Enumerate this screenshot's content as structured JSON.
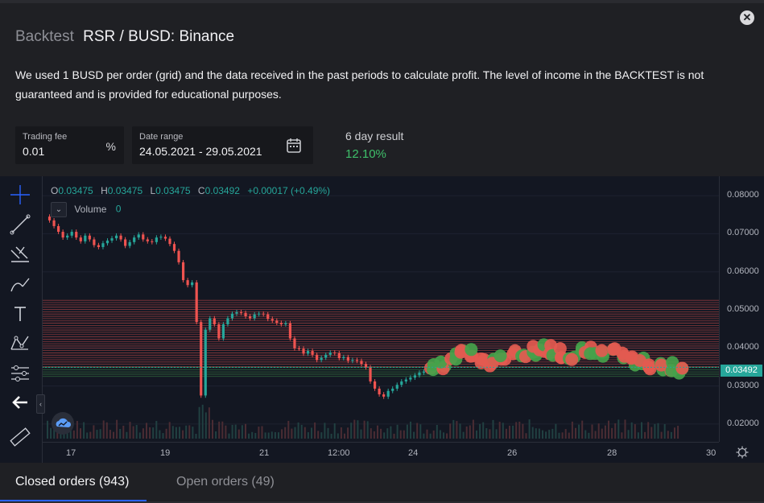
{
  "modal": {
    "title_prefix": "Backtest",
    "title": "RSR / BUSD: Binance",
    "description": "We used 1 BUSD per order (grid) and the data received in the past periods to calculate profit. The level of income in the BACKTEST is not guaranteed and is provided for educational purposes.",
    "close_icon": "close-icon"
  },
  "fields": {
    "trading_fee": {
      "label": "Trading fee",
      "value": "0.01",
      "unit": "%"
    },
    "date_range": {
      "label": "Date range",
      "value": "24.05.2021 - 29.05.2021",
      "icon": "calendar-icon"
    }
  },
  "result": {
    "label": "6 day result",
    "value": "12.10%",
    "color": "#3fbf6a"
  },
  "chart": {
    "ohlc": {
      "o_label": "O",
      "o": "0.03475",
      "h_label": "H",
      "h": "0.03475",
      "l_label": "L",
      "l": "0.03475",
      "c_label": "C",
      "c": "0.03492",
      "change": "+0.00017 (+0.49%)"
    },
    "volume_label": "Volume",
    "volume_value": "0",
    "last_price": "0.03492",
    "colors": {
      "up": "#26a69a",
      "down": "#ef5350",
      "grid_sell": "#ef5350",
      "grid_buy": "#4caf50"
    }
  },
  "chart_data": {
    "type": "line",
    "title": "",
    "xlabel": "",
    "ylabel": "",
    "x_ticks": [
      "17",
      "19",
      "21",
      "12:00",
      "24",
      "26",
      "28",
      "30"
    ],
    "y_ticks": [
      "0.08000",
      "0.07000",
      "0.06000",
      "0.05000",
      "0.04000",
      "0.03000",
      "0.02000"
    ],
    "ylim": [
      0.0185,
      0.0815
    ],
    "series": [
      {
        "values": [
          0.0745,
          0.0735,
          0.072,
          0.0705,
          0.069,
          0.0695,
          0.0705,
          0.069,
          0.068,
          0.0695,
          0.0685,
          0.067,
          0.0665,
          0.0675,
          0.0682,
          0.0688,
          0.0695,
          0.0685,
          0.0668,
          0.0678,
          0.069,
          0.0698,
          0.0685,
          0.068,
          0.0678,
          0.069,
          0.0692,
          0.0687,
          0.0673,
          0.0655,
          0.0625,
          0.0578,
          0.0565,
          0.0572,
          0.0468,
          0.0275,
          0.0448,
          0.0478,
          0.0462,
          0.0425,
          0.0462,
          0.0478,
          0.049,
          0.0494,
          0.0492,
          0.0483,
          0.0478,
          0.0488,
          0.049,
          0.0488,
          0.0476,
          0.0472,
          0.0466,
          0.0462,
          0.0465,
          0.0425,
          0.0399,
          0.0398,
          0.0385,
          0.0392,
          0.0382,
          0.0368,
          0.0374,
          0.0382,
          0.0388,
          0.0386,
          0.0373,
          0.0376,
          0.0366,
          0.0368,
          0.0366,
          0.0358,
          0.0349,
          0.0312,
          0.0293,
          0.0278,
          0.0272,
          0.0287,
          0.0293,
          0.0303,
          0.0312,
          0.0317,
          0.0322,
          0.0328,
          0.0335,
          0.0338,
          0.0345
        ]
      }
    ],
    "grid_sell": {
      "from": 0.0351,
      "to": 0.0525,
      "step": 0.0006
    },
    "grid_buy": {
      "from": 0.0325,
      "to": 0.0351,
      "step": 0.0006
    }
  },
  "toolbar": {
    "tools": [
      "crosshair-icon",
      "trend-line-icon",
      "fib-icon",
      "brush-icon",
      "text-icon",
      "pattern-icon",
      "measure-icon",
      "back-arrow-icon",
      "ruler-icon"
    ]
  },
  "tabs": {
    "closed_label": "Closed orders (943)",
    "open_label": "Open orders (49)"
  }
}
